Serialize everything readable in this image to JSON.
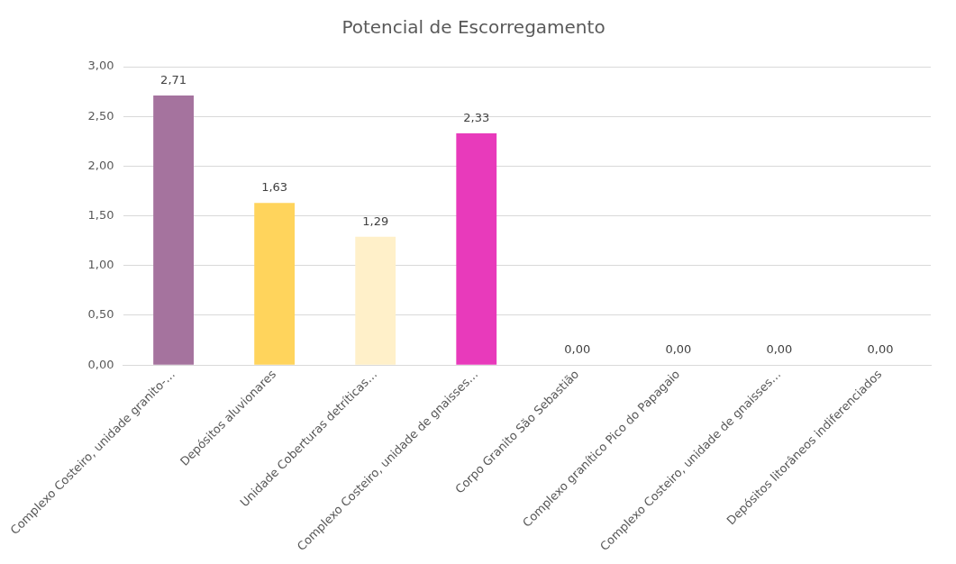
{
  "chart_data": {
    "type": "bar",
    "title": "Potencial de Escorregamento",
    "categories": [
      "Complexo Costeiro, unidade granito-…",
      "Depósitos aluvionares",
      "Unidade Coberturas detríticas…",
      "Complexo Costeiro, unidade de gnaisses…",
      "Corpo Granito São Sebastião",
      "Complexo granítico Pico do Papagaio",
      "Complexo Costeiro, unidade de gnaisses…",
      "Depósitos litorâneos indiferenciados"
    ],
    "values": [
      2.71,
      1.63,
      1.29,
      2.33,
      0,
      0,
      0,
      0
    ],
    "colors": [
      "#a5739e",
      "#ffd45c",
      "#fff0c9",
      "#e83abb",
      "#a5a5a5",
      "#a5a5a5",
      "#a5a5a5",
      "#a5a5a5"
    ],
    "value_labels": [
      "2,71",
      "1,63",
      "1,29",
      "2,33",
      "0,00",
      "0,00",
      "0,00",
      "0,00"
    ],
    "ylim": [
      0,
      3
    ],
    "yticks": [
      {
        "value": 0,
        "label": "0,00"
      },
      {
        "value": 0.5,
        "label": "0,50"
      },
      {
        "value": 1,
        "label": "1,00"
      },
      {
        "value": 1.5,
        "label": "1,50"
      },
      {
        "value": 2,
        "label": "2,00"
      },
      {
        "value": 2.5,
        "label": "2,50"
      },
      {
        "value": 3,
        "label": "3,00"
      }
    ],
    "grid": "y",
    "legend": false
  }
}
